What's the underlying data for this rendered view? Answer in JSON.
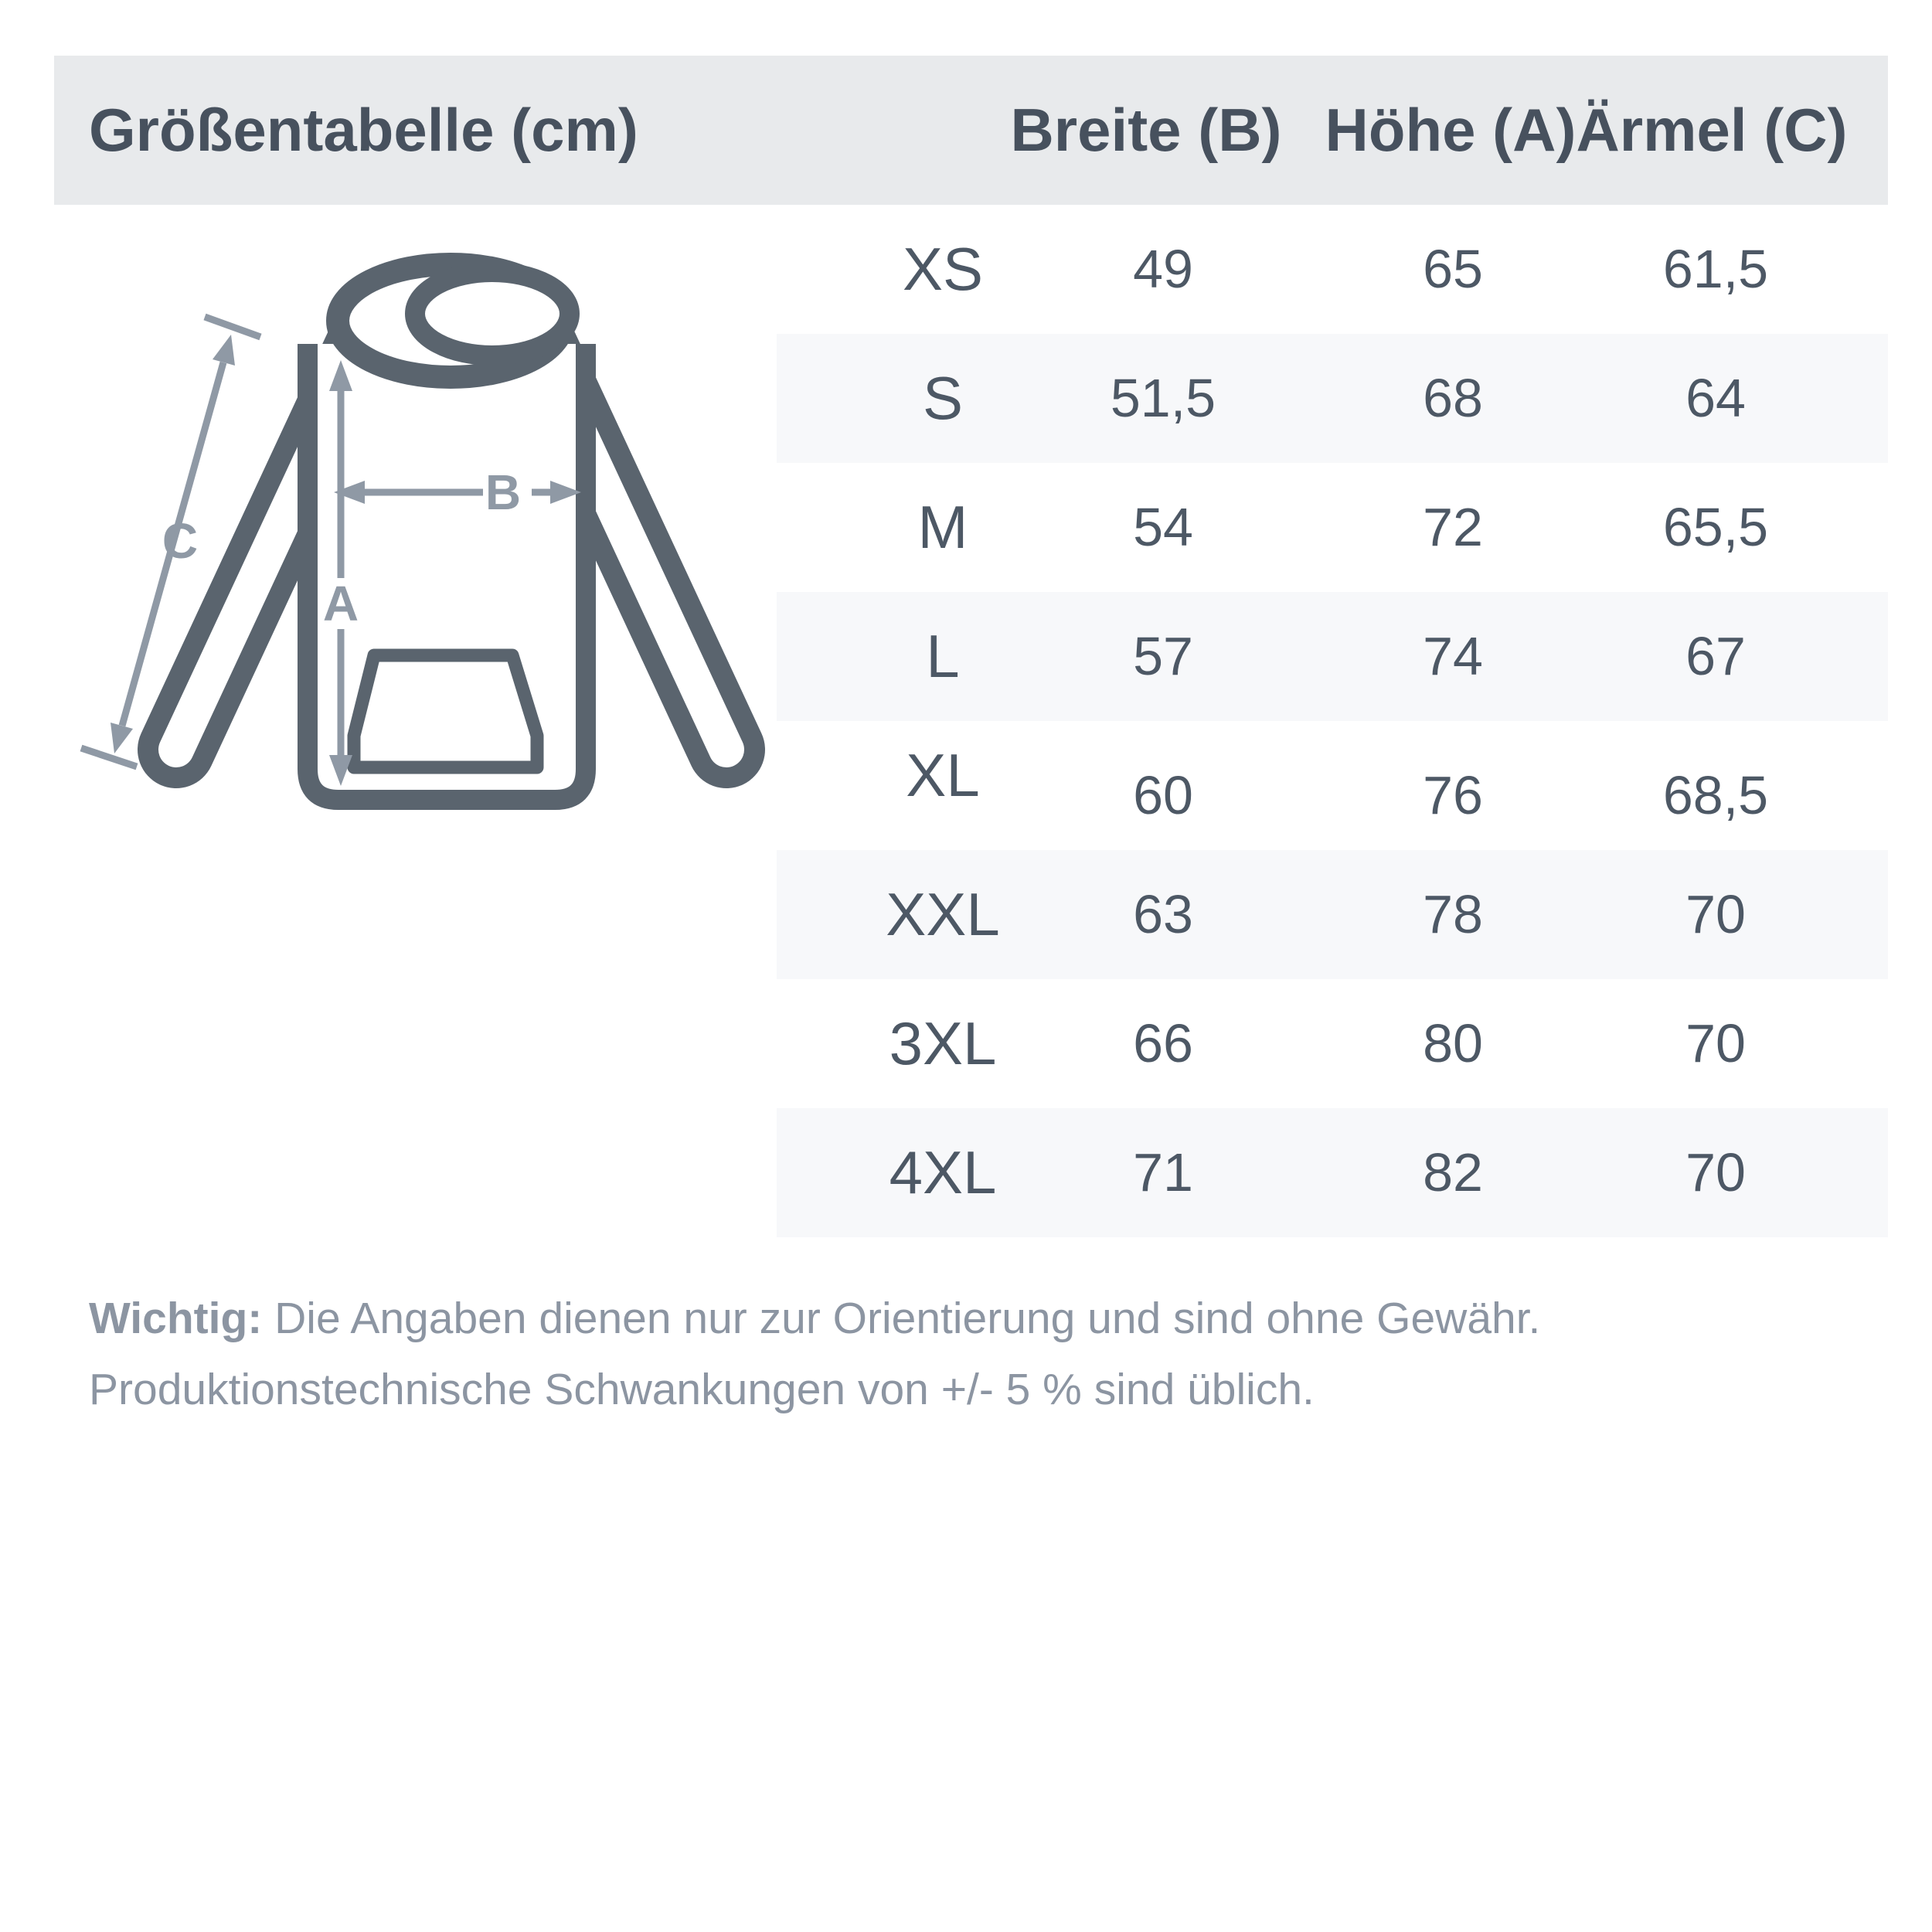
{
  "header": {
    "title": "Größentabelle (cm)",
    "background": "#e8eaec",
    "text_color": "#47515e",
    "columns": [
      {
        "label": "Breite (B)"
      },
      {
        "label": "Höhe (A)"
      },
      {
        "label": "Ärmel (C)"
      }
    ]
  },
  "table": {
    "stripe_color": "#f7f8fa",
    "text_color": "#4d5865",
    "rows": [
      {
        "size": "XS",
        "width": "49",
        "height": "65",
        "sleeve": "61,5"
      },
      {
        "size": "S",
        "width": "51,5",
        "height": "68",
        "sleeve": "64"
      },
      {
        "size": "M",
        "width": "54",
        "height": "72",
        "sleeve": "65,5"
      },
      {
        "size": "L",
        "width": "57",
        "height": "74",
        "sleeve": "67"
      },
      {
        "size": "XL",
        "width": "60",
        "height": "76",
        "sleeve": "68,5"
      },
      {
        "size": "XXL",
        "width": "63",
        "height": "78",
        "sleeve": "70"
      },
      {
        "size": "3XL",
        "width": "66",
        "height": "80",
        "sleeve": "70"
      },
      {
        "size": "4XL",
        "width": "71",
        "height": "82",
        "sleeve": "70"
      }
    ]
  },
  "diagram": {
    "outline_color": "#5a646e",
    "arrow_color": "#8f99a5",
    "labels": {
      "a": "A",
      "b": "B",
      "c": "C"
    }
  },
  "note": {
    "label": "Wichtig:",
    "line1": " Die Angaben dienen nur zur Orientierung und sind ohne Gewähr.",
    "line2": "Produktionstechnische Schwankungen von +/- 5 % sind üblich.",
    "color": "#8c95a2"
  }
}
